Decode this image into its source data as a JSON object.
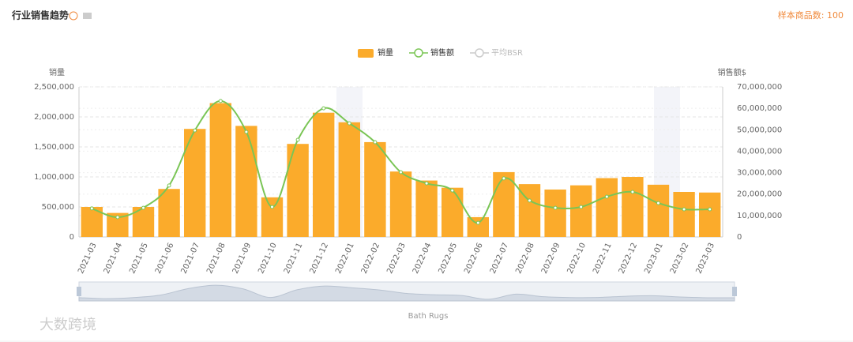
{
  "header": {
    "title": "行业销售趋势",
    "sample": "样本商品数: 100"
  },
  "chart_data": {
    "type": "bar_line",
    "categories": [
      "2021-03",
      "2021-04",
      "2021-05",
      "2021-06",
      "2021-07",
      "2021-08",
      "2021-09",
      "2021-10",
      "2021-11",
      "2021-12",
      "2022-01",
      "2022-02",
      "2022-03",
      "2022-04",
      "2022-05",
      "2022-06",
      "2022-07",
      "2022-08",
      "2022-09",
      "2022-10",
      "2022-11",
      "2022-12",
      "2023-01",
      "2023-02",
      "2023-03"
    ],
    "y_label": "销量",
    "y2_label": "销售额$",
    "series": [
      {
        "name": "销量",
        "type": "bar",
        "color": "#fbab2b",
        "values": [
          500000,
          400000,
          500000,
          800000,
          1800000,
          2230000,
          1850000,
          660000,
          1550000,
          2070000,
          1910000,
          1580000,
          1090000,
          940000,
          820000,
          330000,
          1080000,
          880000,
          790000,
          860000,
          980000,
          1000000,
          870000,
          750000,
          740000
        ]
      },
      {
        "name": "销售额",
        "type": "line",
        "axis": "y2",
        "color": "#7ac555",
        "values": [
          13300000,
          9200000,
          13600000,
          24000000,
          49700000,
          63400000,
          49000000,
          14000000,
          45300000,
          60000000,
          53000000,
          44200000,
          30200000,
          25000000,
          21700000,
          6600000,
          27300000,
          17000000,
          13600000,
          14000000,
          18800000,
          21000000,
          15800000,
          12900000,
          12900000
        ]
      },
      {
        "name": "平均BSR",
        "type": "line",
        "color": "#cccccc"
      }
    ],
    "ylim": [
      0,
      2500000
    ],
    "yticks": [
      0,
      {
        "value": 500000,
        "label": "500,000"
      },
      {
        "value": 1000000,
        "label": "1,000,000"
      },
      {
        "value": 1500000,
        "label": "1,500,000"
      },
      {
        "value": 2000000,
        "label": "2,000,000"
      },
      {
        "value": 2500000,
        "label": "2,500,000"
      }
    ],
    "y2lim": [
      0,
      70000000
    ],
    "y2ticks": [
      0,
      {
        "value": 10000000,
        "label": "10,000,000"
      },
      {
        "value": 20000000,
        "label": "20,000,000"
      },
      {
        "value": 30000000,
        "label": "30,000,000"
      },
      {
        "value": 40000000,
        "label": "40,000,000"
      },
      {
        "value": 50000000,
        "label": "50,000,000"
      },
      {
        "value": 60000000,
        "label": "60,000,000"
      },
      {
        "value": 70000000,
        "label": "70,000,000"
      }
    ],
    "grid": true,
    "legend": "top",
    "zoom_label": "Bath Rugs"
  },
  "watermark": "大数跨境"
}
